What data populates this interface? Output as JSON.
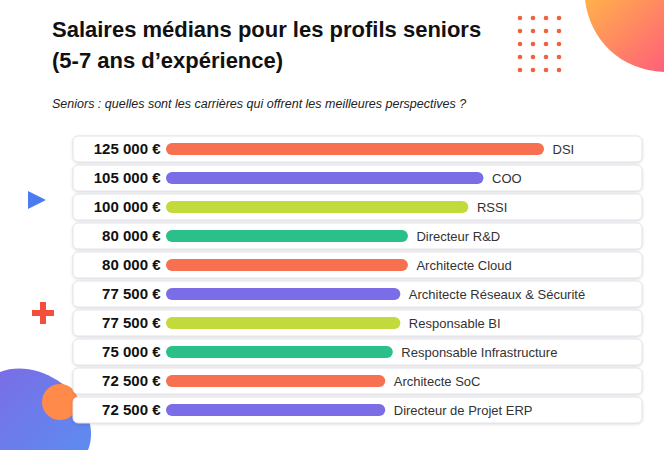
{
  "chart_data": {
    "type": "bar",
    "orientation": "horizontal",
    "title": "Salaires médians pour les profils seniors (5-7 ans d’expérience)",
    "subtitle": "Seniors : quelles sont les carrières qui offrent les meilleures perspectives ?",
    "categories": [
      "DSI",
      "COO",
      "RSSI",
      "Directeur R&D",
      "Architecte Cloud",
      "Architecte Réseaux & Sécurité",
      "Responsable BI",
      "Responsable Infrastructure",
      "Architecte SoC",
      "Directeur de Projet ERP"
    ],
    "values": [
      125000,
      105000,
      100000,
      80000,
      80000,
      77500,
      77500,
      75000,
      72500,
      72500
    ],
    "value_labels": [
      "125 000 €",
      "105 000 €",
      "100 000 €",
      "80 000 €",
      "80 000 €",
      "77 500 €",
      "77 500 €",
      "75 000 €",
      "72 500 €",
      "72 500 €"
    ],
    "colors": [
      "#f7704f",
      "#7a6de6",
      "#c3da3c",
      "#2bbf8a",
      "#f7704f",
      "#7a6de6",
      "#c3da3c",
      "#2bbf8a",
      "#f7704f",
      "#7a6de6"
    ],
    "xlim": [
      0,
      125000
    ],
    "data_labels": true,
    "tick_labels": false,
    "grid": false
  }
}
